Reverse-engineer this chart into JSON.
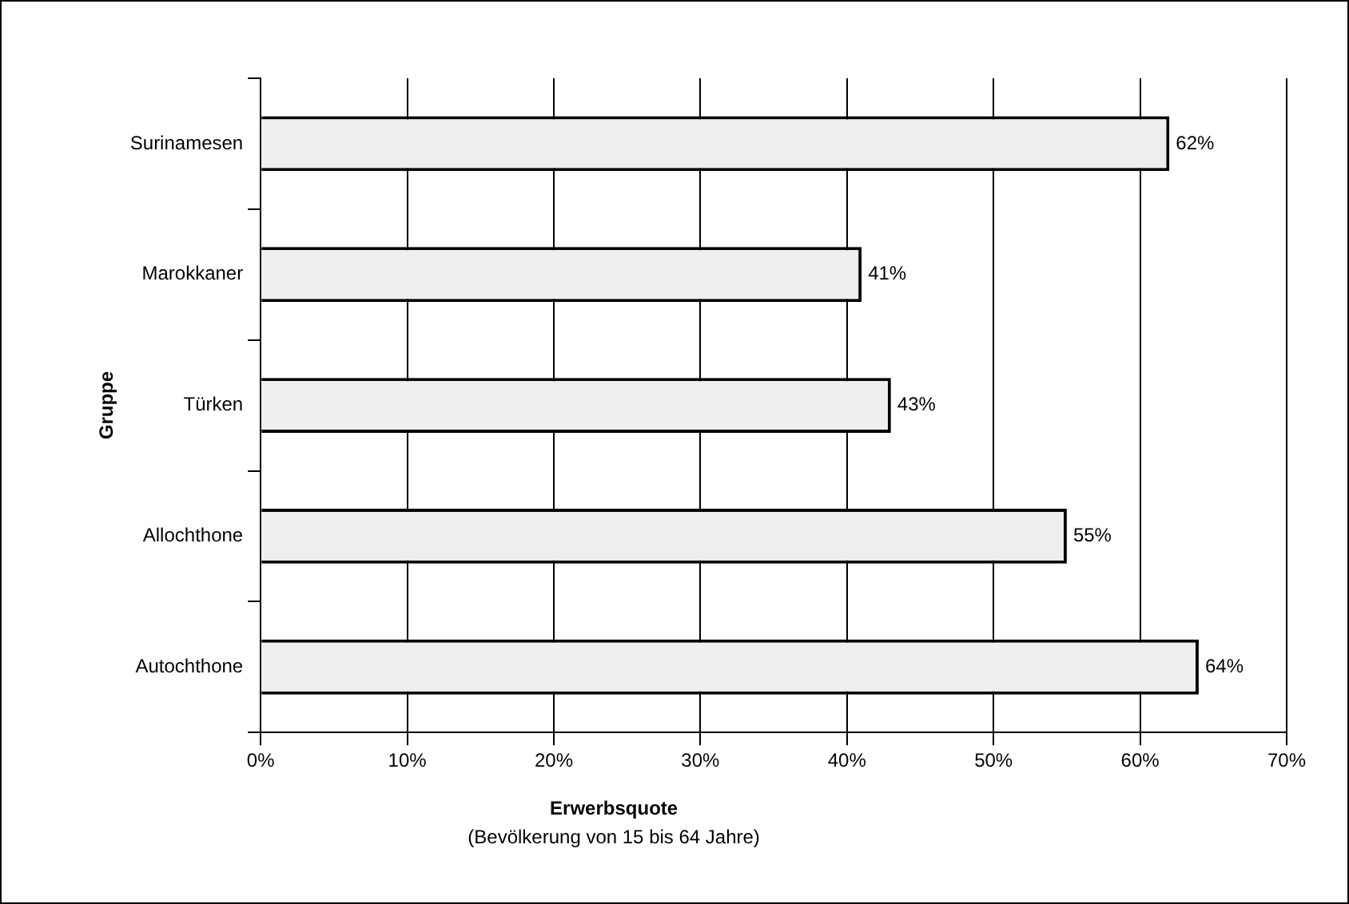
{
  "chart_data": {
    "type": "bar",
    "orientation": "horizontal",
    "categories": [
      "Surinamesen",
      "Marokkaner",
      "Türken",
      "Allochthone",
      "Autochthone"
    ],
    "values": [
      62,
      41,
      43,
      55,
      64
    ],
    "value_labels": [
      "62%",
      "41%",
      "43%",
      "55%",
      "64%"
    ],
    "color": "#eeeeee",
    "xlim": [
      0,
      70
    ],
    "xticks": [
      {
        "value": 0,
        "label": "0%"
      },
      {
        "value": 10,
        "label": "10%"
      },
      {
        "value": 20,
        "label": "20%"
      },
      {
        "value": 30,
        "label": "30%"
      },
      {
        "value": 40,
        "label": "40%"
      },
      {
        "value": 50,
        "label": "50%"
      },
      {
        "value": 60,
        "label": "60%"
      },
      {
        "value": 70,
        "label": "70%"
      }
    ],
    "xlabel": "Erwerbsquote",
    "ylabel": "Gruppe",
    "annotations": [
      "(Bevölkerung von 15 bis 64 Jahre)"
    ],
    "grid": "x",
    "legend": false
  }
}
